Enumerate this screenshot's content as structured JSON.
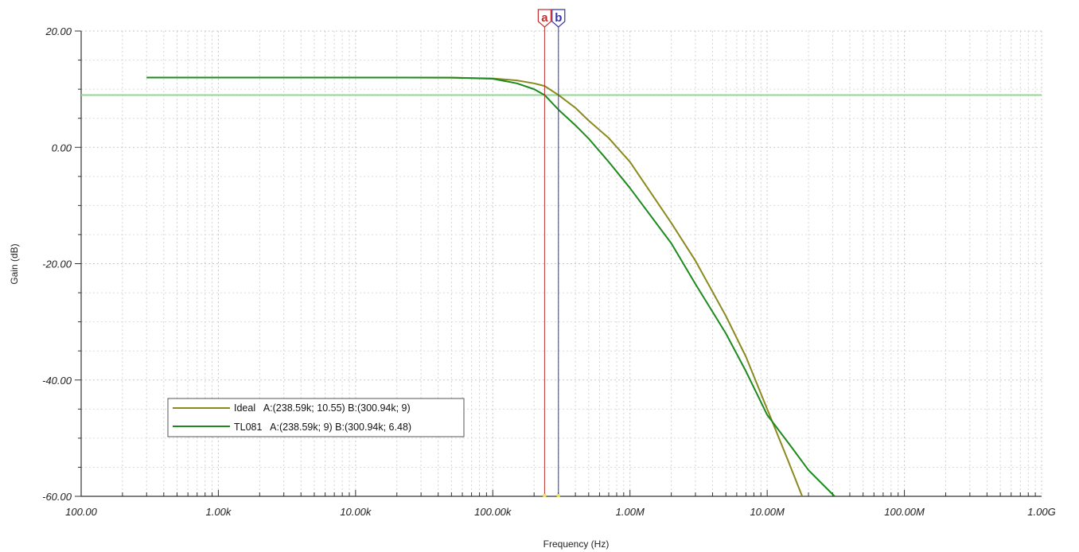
{
  "chart_data": {
    "type": "line",
    "xlabel": "Frequency (Hz)",
    "ylabel": "Gain (dB)",
    "xscale": "log",
    "xlim": [
      100,
      1000000000
    ],
    "ylim": [
      -60,
      20
    ],
    "grid": true,
    "legend_position": "bottom-left",
    "x_ticks": [
      {
        "value": 100,
        "label": "100.00"
      },
      {
        "value": 1000,
        "label": "1.00k"
      },
      {
        "value": 10000,
        "label": "10.00k"
      },
      {
        "value": 100000,
        "label": "100.00k"
      },
      {
        "value": 1000000,
        "label": "1.00M"
      },
      {
        "value": 10000000,
        "label": "10.00M"
      },
      {
        "value": 100000000,
        "label": "100.00M"
      },
      {
        "value": 1000000000,
        "label": "1.00G"
      }
    ],
    "y_ticks": [
      {
        "value": 20,
        "label": "20.00"
      },
      {
        "value": 0,
        "label": "0.00"
      },
      {
        "value": -20,
        "label": "-20.00"
      },
      {
        "value": -40,
        "label": "-40.00"
      },
      {
        "value": -60,
        "label": "-60.00"
      }
    ],
    "reference_line": {
      "y": 9,
      "color": "#90d890"
    },
    "cursors": [
      {
        "name": "a",
        "x": 238590,
        "color": "#c03030"
      },
      {
        "name": "b",
        "x": 300940,
        "color": "#3333aa"
      }
    ],
    "series": [
      {
        "name": "Ideal",
        "legend": "Ideal   A:(238.59k; 10.55) B:(300.94k; 9)",
        "color": "#8a8a1e",
        "points": [
          [
            300,
            12
          ],
          [
            10000,
            12
          ],
          [
            50000,
            11.99
          ],
          [
            100000,
            11.85
          ],
          [
            150000,
            11.5
          ],
          [
            200000,
            11.0
          ],
          [
            238590,
            10.55
          ],
          [
            300940,
            9
          ],
          [
            400000,
            6.8
          ],
          [
            500000,
            4.6
          ],
          [
            700000,
            1.6
          ],
          [
            1000000,
            -2.5
          ],
          [
            2000000,
            -13
          ],
          [
            3000000,
            -19.5
          ],
          [
            5000000,
            -29
          ],
          [
            7000000,
            -36
          ],
          [
            10000000,
            -45
          ],
          [
            14000000,
            -53.5
          ],
          [
            18000000,
            -60
          ]
        ]
      },
      {
        "name": "TL081",
        "legend": "TL081   A:(238.59k; 9) B:(300.94k; 6.48)",
        "color": "#1e8a1e",
        "points": [
          [
            300,
            12
          ],
          [
            10000,
            12
          ],
          [
            50000,
            11.99
          ],
          [
            100000,
            11.8
          ],
          [
            150000,
            11.0
          ],
          [
            200000,
            10.0
          ],
          [
            238590,
            9
          ],
          [
            300940,
            6.48
          ],
          [
            400000,
            3.8
          ],
          [
            500000,
            1.5
          ],
          [
            700000,
            -2.5
          ],
          [
            1000000,
            -7
          ],
          [
            2000000,
            -16.5
          ],
          [
            3000000,
            -23.5
          ],
          [
            5000000,
            -32
          ],
          [
            7000000,
            -38.5
          ],
          [
            10000000,
            -46
          ],
          [
            15000000,
            -51.5
          ],
          [
            20000000,
            -55.5
          ],
          [
            31000000,
            -60
          ]
        ]
      }
    ]
  }
}
